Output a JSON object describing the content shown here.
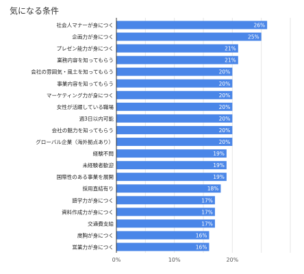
{
  "chart_data": {
    "type": "bar",
    "orientation": "horizontal",
    "title": "気になる条件",
    "xlabel": "",
    "ylabel": "",
    "xlim": [
      0,
      0.3
    ],
    "xticks": [
      "0%",
      "10%",
      "20%"
    ],
    "grid": true,
    "legend": "none",
    "bar_color": "#4a86e8",
    "categories": [
      "社会人マナーが身につく",
      "企画力が身につく",
      "プレゼン能力が身につく",
      "業務内容を知ってもらう",
      "会社の雰囲気・風土を知ってもらう",
      "事業内容を知ってもらう",
      "マーケティング力が身につく",
      "女性が活躍している職場",
      "週3日以内可能",
      "会社の魅力を知ってもらう",
      "グローバル企業（海外拠点あり）",
      "経験不問",
      "未経験者歓迎",
      "国際性のある事業を展開",
      "採用直結有り",
      "語学力が身につく",
      "資料作成力が身につく",
      "交通費支給",
      "度胸が身につく",
      "営業力が身につく"
    ],
    "values": [
      0.26,
      0.25,
      0.21,
      0.21,
      0.2,
      0.2,
      0.2,
      0.2,
      0.2,
      0.2,
      0.2,
      0.19,
      0.19,
      0.19,
      0.18,
      0.17,
      0.17,
      0.17,
      0.16,
      0.16
    ],
    "data_labels": [
      "26%",
      "25%",
      "21%",
      "21%",
      "20%",
      "20%",
      "20%",
      "20%",
      "20%",
      "20%",
      "20%",
      "19%",
      "19%",
      "19%",
      "18%",
      "17%",
      "17%",
      "17%",
      "16%",
      "16%"
    ]
  }
}
